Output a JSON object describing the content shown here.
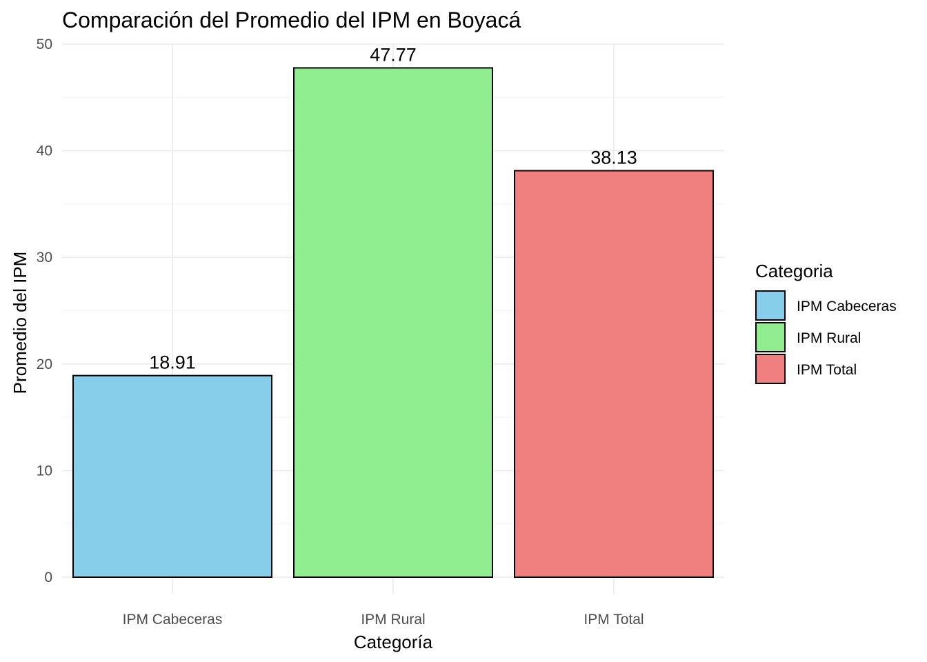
{
  "chart_data": {
    "type": "bar",
    "title": "Comparación del Promedio del IPM en Boyacá",
    "xlabel": "Categoría",
    "ylabel": "Promedio del IPM",
    "categories": [
      "IPM Cabeceras",
      "IPM Rural",
      "IPM Total"
    ],
    "values": [
      18.91,
      47.77,
      38.13
    ],
    "data_labels": [
      "18.91",
      "47.77",
      "38.13"
    ],
    "colors": [
      "#87ceeb",
      "#90ee90",
      "#f08080"
    ],
    "ylim": [
      0,
      50
    ],
    "yticks": [
      0,
      10,
      20,
      30,
      40,
      50
    ],
    "ytick_labels": [
      "0",
      "10",
      "20",
      "30",
      "40",
      "50"
    ],
    "grid": true,
    "legend": {
      "title": "Categoria",
      "placement": "right",
      "entries": [
        "IPM Cabeceras",
        "IPM Rural",
        "IPM Total"
      ]
    }
  }
}
